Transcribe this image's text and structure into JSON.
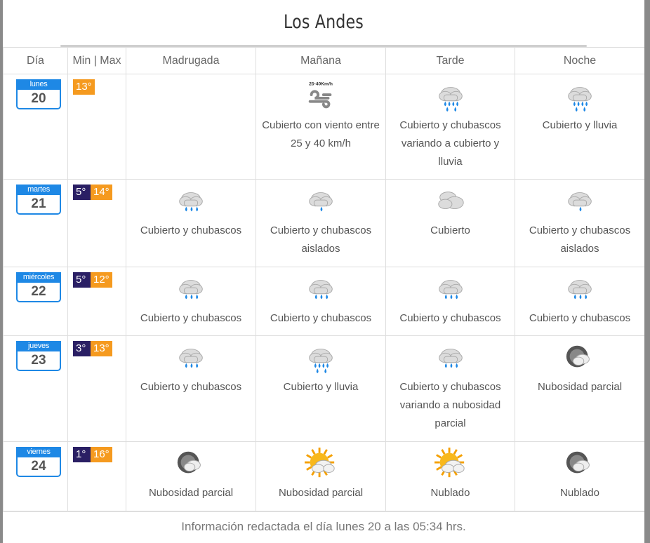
{
  "city": "Los Andes",
  "headers": [
    "Día",
    "Min | Max",
    "Madrugada",
    "Mañana",
    "Tarde",
    "Noche"
  ],
  "days": [
    {
      "name": "lunes",
      "num": "20",
      "min": "",
      "max": "13°",
      "periods": [
        {
          "icon": "",
          "text": ""
        },
        {
          "icon": "wind-icon",
          "icon_label": "25-40Km/h",
          "text": "Cubierto con viento entre 25 y 40 km/h"
        },
        {
          "icon": "heavy-rain-icon",
          "text": "Cubierto y chubascos variando a cubierto y lluvia"
        },
        {
          "icon": "heavy-rain-icon",
          "text": "Cubierto y lluvia"
        }
      ]
    },
    {
      "name": "martes",
      "num": "21",
      "min": "5°",
      "max": "14°",
      "periods": [
        {
          "icon": "showers-icon",
          "text": "Cubierto y chubascos"
        },
        {
          "icon": "light-rain-icon",
          "text": "Cubierto y chubascos aislados"
        },
        {
          "icon": "cloud-icon",
          "text": "Cubierto"
        },
        {
          "icon": "light-rain-icon",
          "text": "Cubierto y chubascos aislados"
        }
      ]
    },
    {
      "name": "miércoles",
      "num": "22",
      "min": "5°",
      "max": "12°",
      "periods": [
        {
          "icon": "showers-icon",
          "text": "Cubierto y chubascos"
        },
        {
          "icon": "showers-icon",
          "text": "Cubierto y chubascos"
        },
        {
          "icon": "showers-icon",
          "text": "Cubierto y chubascos"
        },
        {
          "icon": "showers-icon",
          "text": "Cubierto y chubascos"
        }
      ]
    },
    {
      "name": "jueves",
      "num": "23",
      "min": "3°",
      "max": "13°",
      "periods": [
        {
          "icon": "showers-icon",
          "text": "Cubierto y chubascos"
        },
        {
          "icon": "heavy-rain-icon",
          "text": "Cubierto y lluvia"
        },
        {
          "icon": "showers-icon",
          "text": "Cubierto y chubascos variando a nubosidad parcial"
        },
        {
          "icon": "moon-cloud-icon",
          "text": "Nubosidad parcial"
        }
      ]
    },
    {
      "name": "viernes",
      "num": "24",
      "min": "1°",
      "max": "16°",
      "periods": [
        {
          "icon": "moon-cloud-icon",
          "text": "Nubosidad parcial"
        },
        {
          "icon": "sun-cloud-icon",
          "text": "Nubosidad parcial"
        },
        {
          "icon": "sun-cloud-icon",
          "text": "Nublado"
        },
        {
          "icon": "moon-cloud-icon",
          "text": "Nublado"
        }
      ]
    }
  ],
  "footer": "Información redactada el día lunes 20 a las 05:34 hrs."
}
